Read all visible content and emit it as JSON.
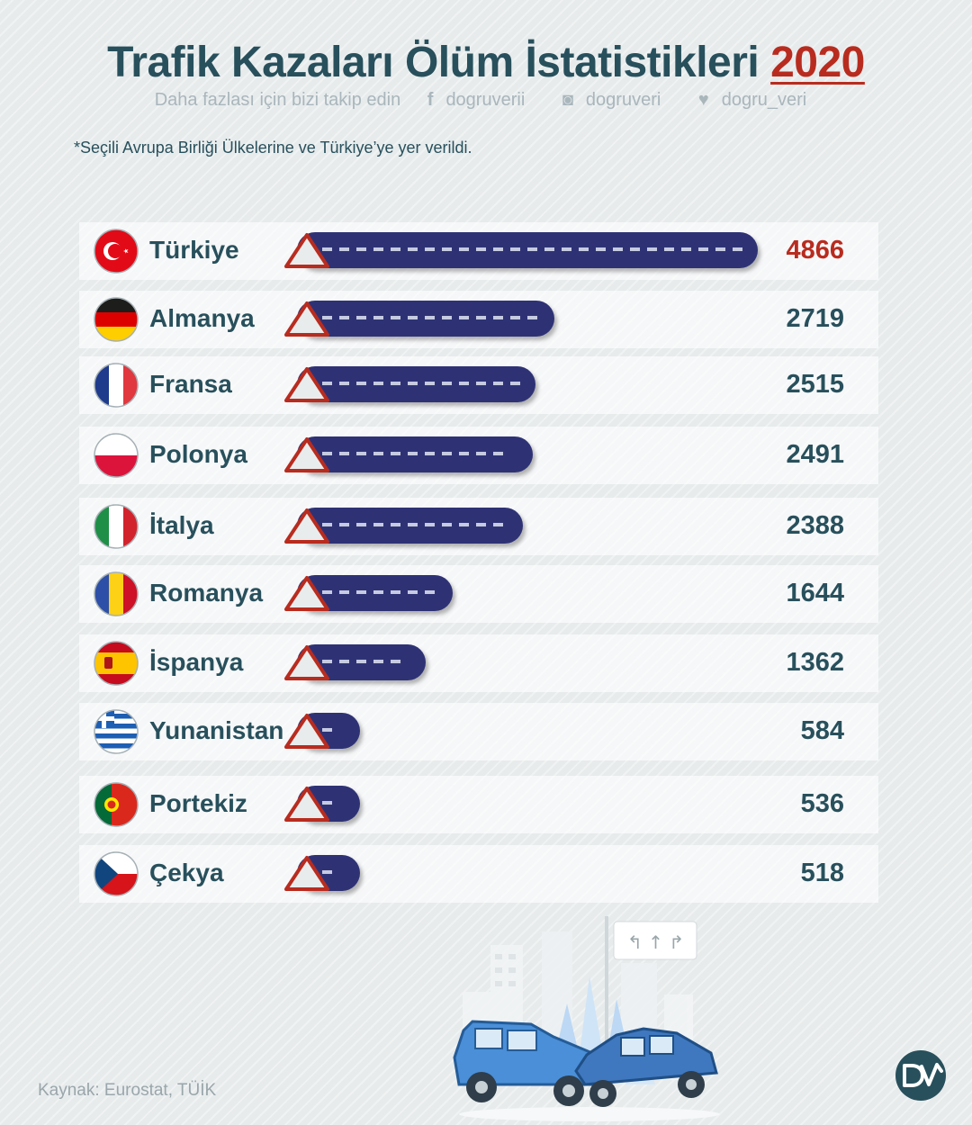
{
  "header": {
    "title": "Trafik Kazaları Ölüm İstatistikleri",
    "year": "2020",
    "follow_text": "Daha fazlası için bizi takip edin",
    "facebook": "dogruverii",
    "instagram": "dogruveri",
    "twitter": "dogru_veri"
  },
  "note": "*Seçili Avrupa Birliği Ülkelerine ve Türkiye’ye yer verildi.",
  "chart_data": {
    "type": "bar",
    "categories": [
      "Türkiye",
      "Almanya",
      "Fransa",
      "Polonya",
      "İtalya",
      "Romanya",
      "İspanya",
      "Yunanistan",
      "Portekiz",
      "Çekya"
    ],
    "values": [
      4866,
      2719,
      2515,
      2491,
      2388,
      1644,
      1362,
      584,
      536,
      518
    ],
    "value_labels": [
      "4866",
      "2719",
      "2515",
      "2491",
      "2388",
      "1644",
      "1362",
      "584",
      "536",
      "518"
    ],
    "highlight_index": 0,
    "title": "Trafik Kazaları Ölüm İstatistikleri 2020",
    "xlabel": "",
    "ylabel": "",
    "orientation": "horizontal",
    "colors": {
      "bar": "#2e3275",
      "dash": "#c7cbe2",
      "warning": "#b82c1f",
      "highlight_value": "#b82c1f",
      "text": "#28505c"
    }
  },
  "source": "Kaynak: Eurostat, TÜİK",
  "logo_text": "DV"
}
